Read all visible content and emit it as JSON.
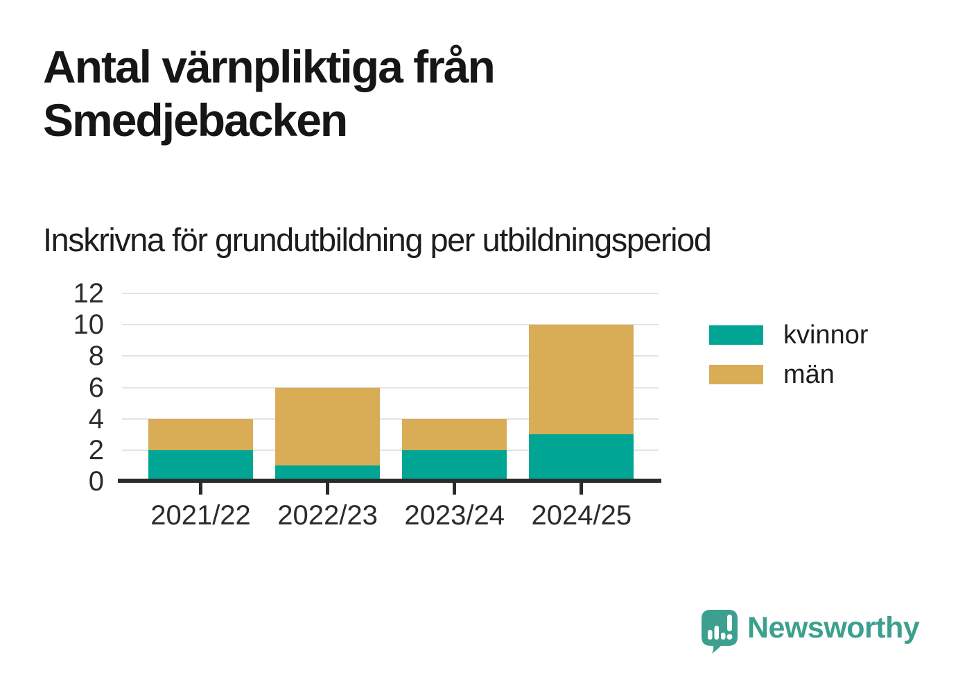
{
  "branding": {
    "logo_text": "Newsworthy",
    "logo_color": "#3da08f"
  },
  "colors": {
    "grid": "#e3e3e3",
    "axis": "#2b2b2b",
    "text": "#1d1d1d"
  },
  "chart_data": {
    "type": "bar",
    "stacked": true,
    "title": "Antal värnpliktiga från Smedjebacken",
    "subtitle": "Inskrivna för grundutbildning per utbildningsperiod",
    "categories": [
      "2021/22",
      "2022/23",
      "2023/24",
      "2024/25"
    ],
    "series": [
      {
        "name": "kvinnor",
        "key": "kvinnor",
        "color": "#00a693",
        "values": [
          2,
          1,
          2,
          3
        ]
      },
      {
        "name": "män",
        "key": "man",
        "color": "#d8ad56",
        "values": [
          2,
          5,
          2,
          7
        ]
      }
    ],
    "totals": [
      4,
      6,
      4,
      10
    ],
    "ylim": [
      0,
      12
    ],
    "yticks": [
      0,
      2,
      4,
      6,
      8,
      10,
      12
    ],
    "xlabel": "",
    "ylabel": "",
    "grid": "horizontal",
    "legend_position": "right"
  }
}
